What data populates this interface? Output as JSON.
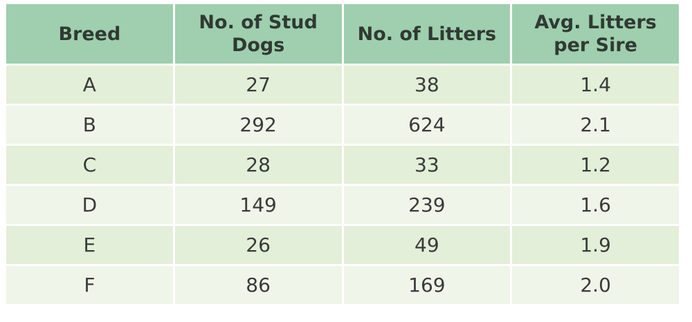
{
  "table": {
    "header": [
      "Breed",
      "No. of Stud Dogs",
      "No. of Litters",
      "Avg. Litters per Sire"
    ],
    "rows": [
      [
        "A",
        "27",
        "38",
        "1.4"
      ],
      [
        "B",
        "292",
        "624",
        "2.1"
      ],
      [
        "C",
        "28",
        "33",
        "1.2"
      ],
      [
        "D",
        "149",
        "239",
        "1.6"
      ],
      [
        "E",
        "26",
        "49",
        "1.9"
      ],
      [
        "F",
        "86",
        "169",
        "2.0"
      ]
    ]
  }
}
